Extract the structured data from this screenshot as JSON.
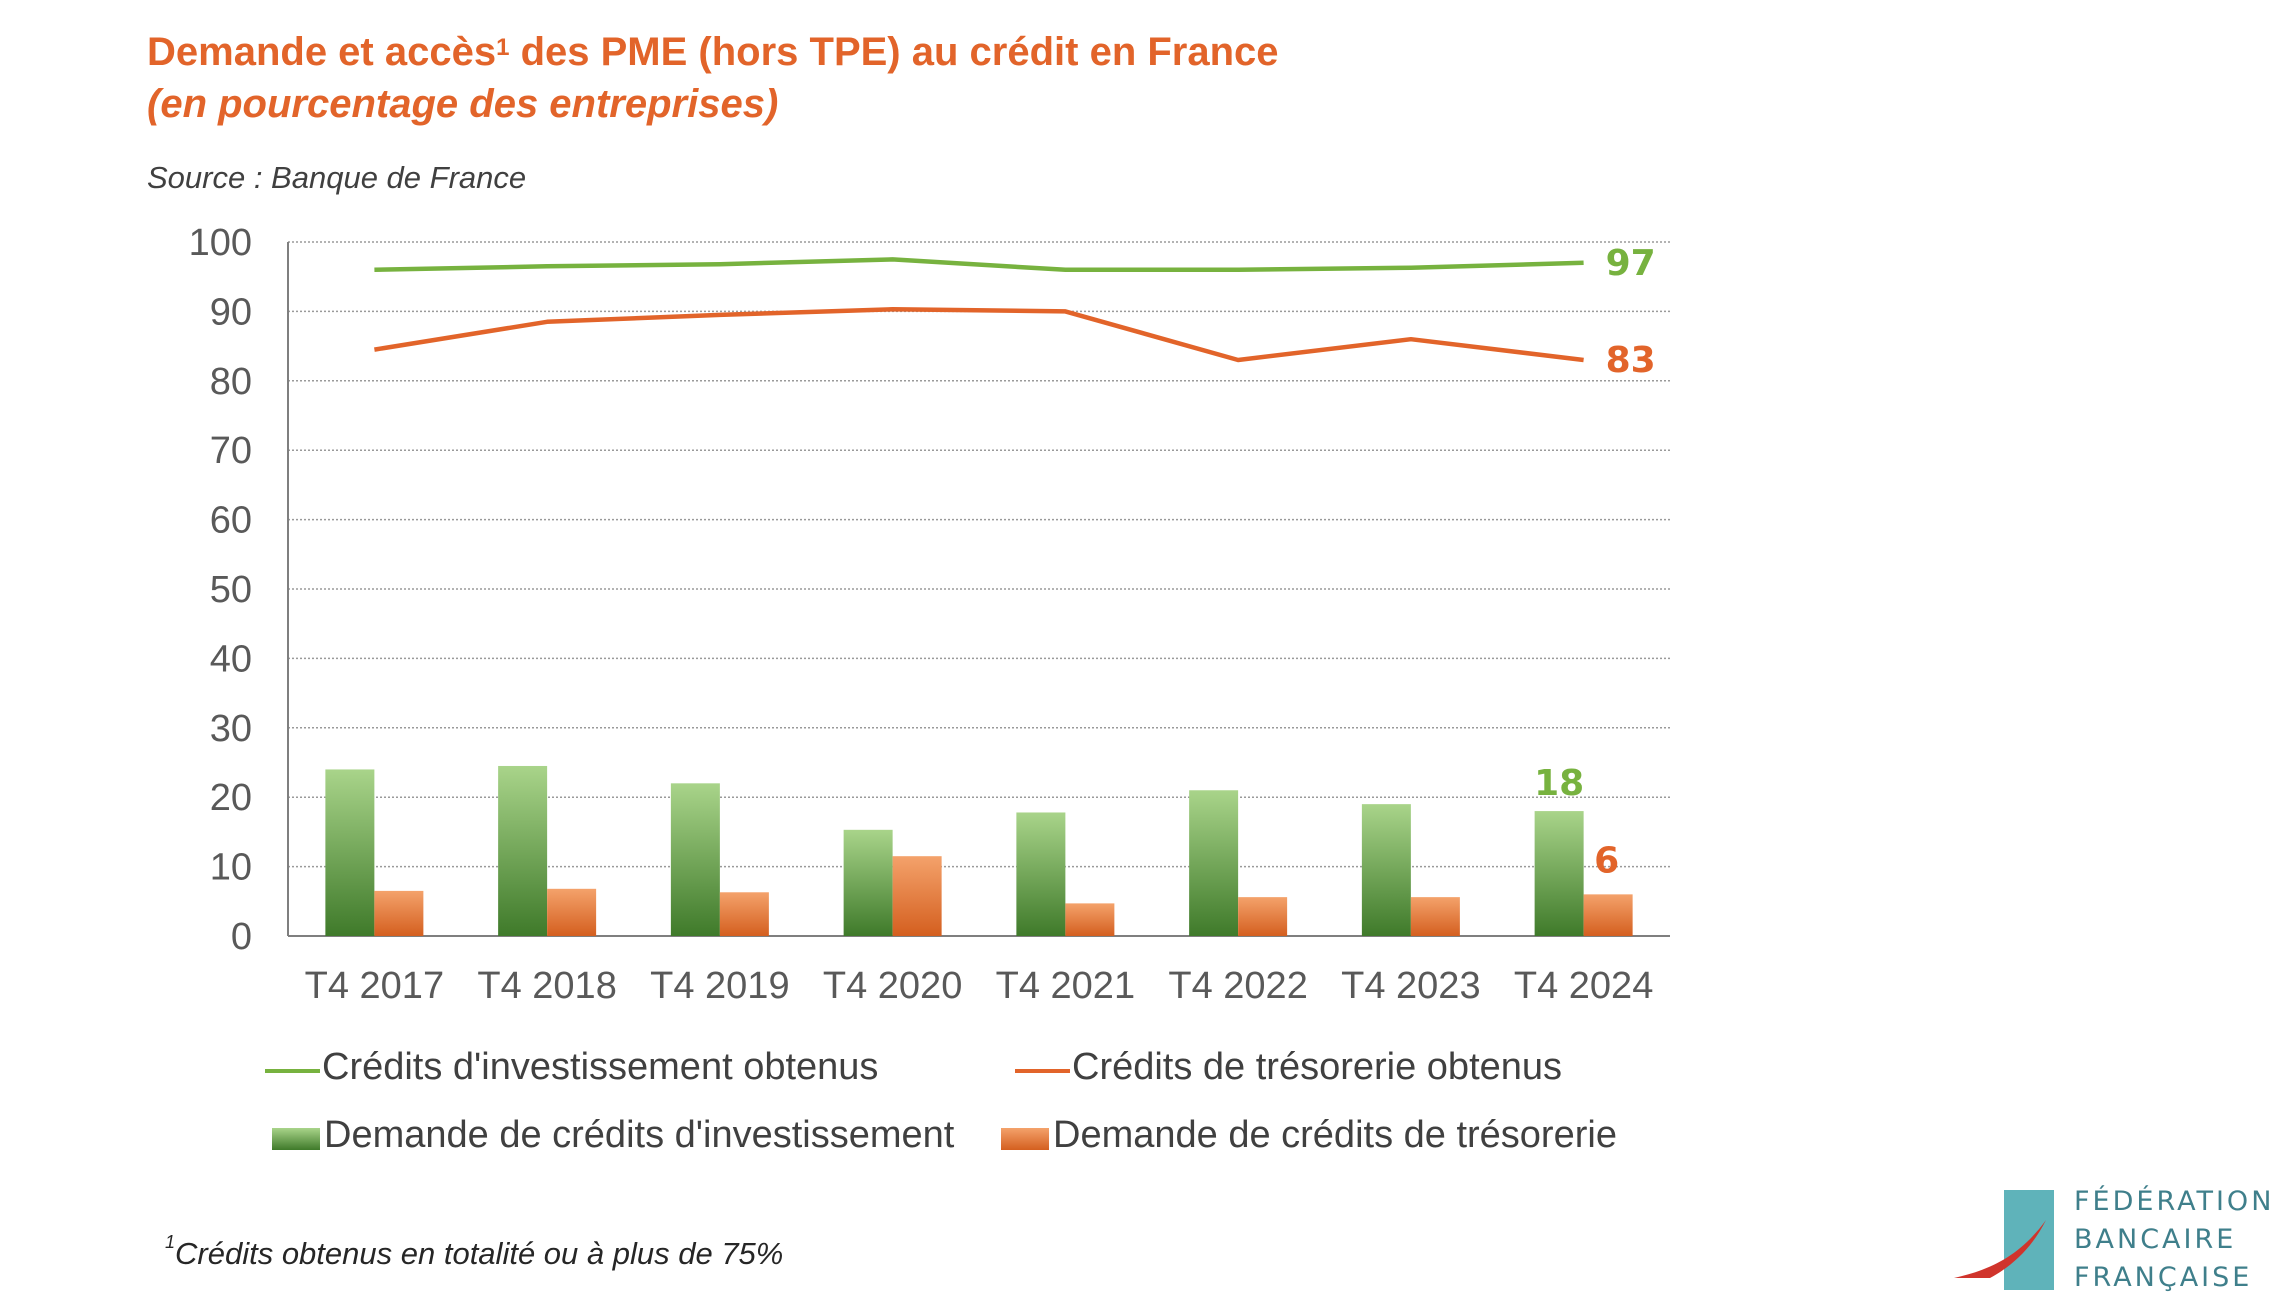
{
  "title_main": "Demande et accès",
  "title_sup": "1",
  "title_rest": " des PME (hors TPE) au crédit en France",
  "subtitle": "(en pourcentage des entreprises)",
  "source": "Source : Banque de France",
  "chart_data": {
    "type": "bar+line",
    "categories": [
      "T4 2017",
      "T4 2018",
      "T4 2019",
      "T4 2020",
      "T4 2021",
      "T4 2022",
      "T4 2023",
      "T4 2024"
    ],
    "ylim": [
      0,
      100
    ],
    "yticks": [
      0,
      10,
      20,
      30,
      40,
      50,
      60,
      70,
      80,
      90,
      100
    ],
    "lines": [
      {
        "name": "Crédits d'investissement obtenus",
        "color": "#77b23f",
        "values": [
          96,
          96.5,
          96.8,
          97.5,
          96,
          96,
          96.3,
          97
        ],
        "end_label": "97"
      },
      {
        "name": "Crédits de trésorerie obtenus",
        "color": "#e2642a",
        "values": [
          84.5,
          88.5,
          89.5,
          90.3,
          90,
          83,
          86,
          83
        ],
        "end_label": "83"
      }
    ],
    "bars": [
      {
        "name": "Demande de crédits d'investissement",
        "color": "#6ea84a",
        "values": [
          24,
          24.5,
          22,
          15.3,
          17.8,
          21,
          19,
          18
        ],
        "end_label": "18"
      },
      {
        "name": "Demande de crédits de trésorerie",
        "color": "#e9813e",
        "values": [
          6.5,
          6.8,
          6.3,
          11.5,
          4.7,
          5.6,
          5.6,
          6
        ],
        "end_label": "6"
      }
    ]
  },
  "legend": {
    "line1": "Crédits d'investissement obtenus",
    "line2": "Crédits de trésorerie obtenus",
    "bar1": "Demande de crédits d'investissement",
    "bar2": "Demande de crédits de trésorerie"
  },
  "footnote_sup": "1",
  "footnote": "Crédits obtenus en totalité ou à plus de 75%",
  "logo": {
    "line1": "FÉDÉRATION",
    "line2": "BANCAIRE",
    "line3": "FRANÇAISE",
    "teal": "#5fb3ba",
    "red": "#d0342c"
  }
}
